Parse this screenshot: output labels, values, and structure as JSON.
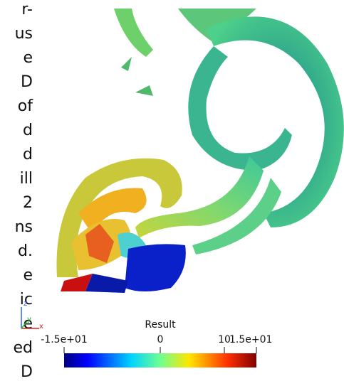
{
  "body_text_fragments": [
    "r-",
    "us",
    "e",
    "D",
    "of",
    "d",
    "d",
    "ill",
    "2",
    "ns",
    "d.",
    "e",
    "ic",
    "e",
    "ed",
    "D"
  ],
  "axes_triad": {
    "z": "z",
    "y": "y",
    "x": "x"
  },
  "colorbar": {
    "title": "Result",
    "range": [
      -15,
      15
    ],
    "ticks": [
      {
        "value": -15,
        "label": "-1.5e+01"
      },
      0,
      10,
      {
        "value": 15,
        "label": "1.5e+01"
      }
    ]
  }
}
